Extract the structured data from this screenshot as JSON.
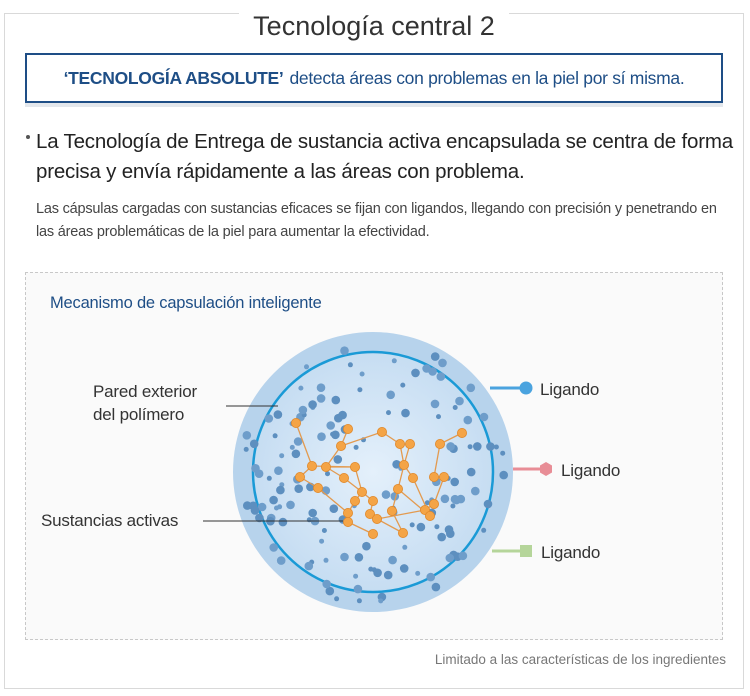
{
  "title": "Tecnología central 2",
  "banner": {
    "highlight": "‘TECNOLOGÍA ABSOLUTE’",
    "text": "detecta áreas con problemas en la piel por sí misma."
  },
  "lead_text": "La Tecnología de Entrega de sustancia activa encapsulada se centra de forma precisa y envía rápidamente a las áreas con problema.",
  "sub_text": "Las cápsulas cargadas con sustancias eficaces se fijan con ligandos, llegando con precisión y penetrando en las áreas problemáticas de la piel para aumentar la efectividad.",
  "diagram": {
    "title": "Mecanismo de capsulación inteligente",
    "label_wall_line1": "Pared exterior",
    "label_wall_line2": "del polímero",
    "label_substances": "Sustancias activas",
    "ligand_1": "Ligando",
    "ligand_2": "Ligando",
    "ligand_3": "Ligando"
  },
  "footnote": "Limitado a las características de los ingredientes",
  "colors": {
    "brand_blue": "#1e4e86",
    "capsule_outer": "#b7d3ec",
    "capsule_ring": "#1a9ad6",
    "particle_blue": "#5d8fbf",
    "substance_orange": "#f4a446",
    "ligand_blue": "#4aa3df",
    "ligand_pink": "#e88d96",
    "ligand_green": "#b5d59a"
  }
}
